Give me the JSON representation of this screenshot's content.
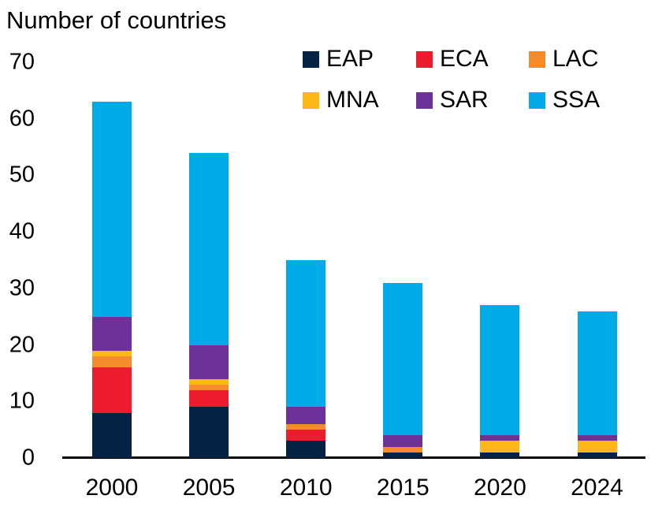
{
  "title": "Number of countries",
  "legend": {
    "items": [
      {
        "label": "EAP",
        "color": "#042344"
      },
      {
        "label": "ECA",
        "color": "#EC1C2E"
      },
      {
        "label": "LAC",
        "color": "#F58C2B"
      },
      {
        "label": "MNA",
        "color": "#FCB816"
      },
      {
        "label": "SAR",
        "color": "#6D3299"
      },
      {
        "label": "SSA",
        "color": "#00ABE8"
      }
    ]
  },
  "chart_data": {
    "type": "bar",
    "stacked": true,
    "title": "Number of countries",
    "categories": [
      "2000",
      "2005",
      "2010",
      "2015",
      "2020",
      "2024"
    ],
    "series": [
      {
        "name": "EAP",
        "color": "#042344",
        "values": [
          8,
          9,
          3,
          1,
          1,
          1
        ]
      },
      {
        "name": "ECA",
        "color": "#EC1C2E",
        "values": [
          8,
          3,
          2,
          0,
          0,
          0
        ]
      },
      {
        "name": "LAC",
        "color": "#F58C2B",
        "values": [
          2,
          1,
          1,
          1,
          0,
          0
        ]
      },
      {
        "name": "MNA",
        "color": "#FCB816",
        "values": [
          1,
          1,
          0,
          0,
          2,
          2
        ]
      },
      {
        "name": "SAR",
        "color": "#6D3299",
        "values": [
          6,
          6,
          3,
          2,
          1,
          1
        ]
      },
      {
        "name": "SSA",
        "color": "#00ABE8",
        "values": [
          38,
          34,
          26,
          27,
          23,
          22
        ]
      }
    ],
    "totals": [
      63,
      54,
      35,
      31,
      27,
      26
    ],
    "ylabel": "Number of countries",
    "xlabel": "",
    "ylim": [
      0,
      70
    ],
    "yticks": [
      0,
      10,
      20,
      30,
      40,
      50,
      60,
      70
    ],
    "grid": false,
    "legend_position": "top-right"
  }
}
